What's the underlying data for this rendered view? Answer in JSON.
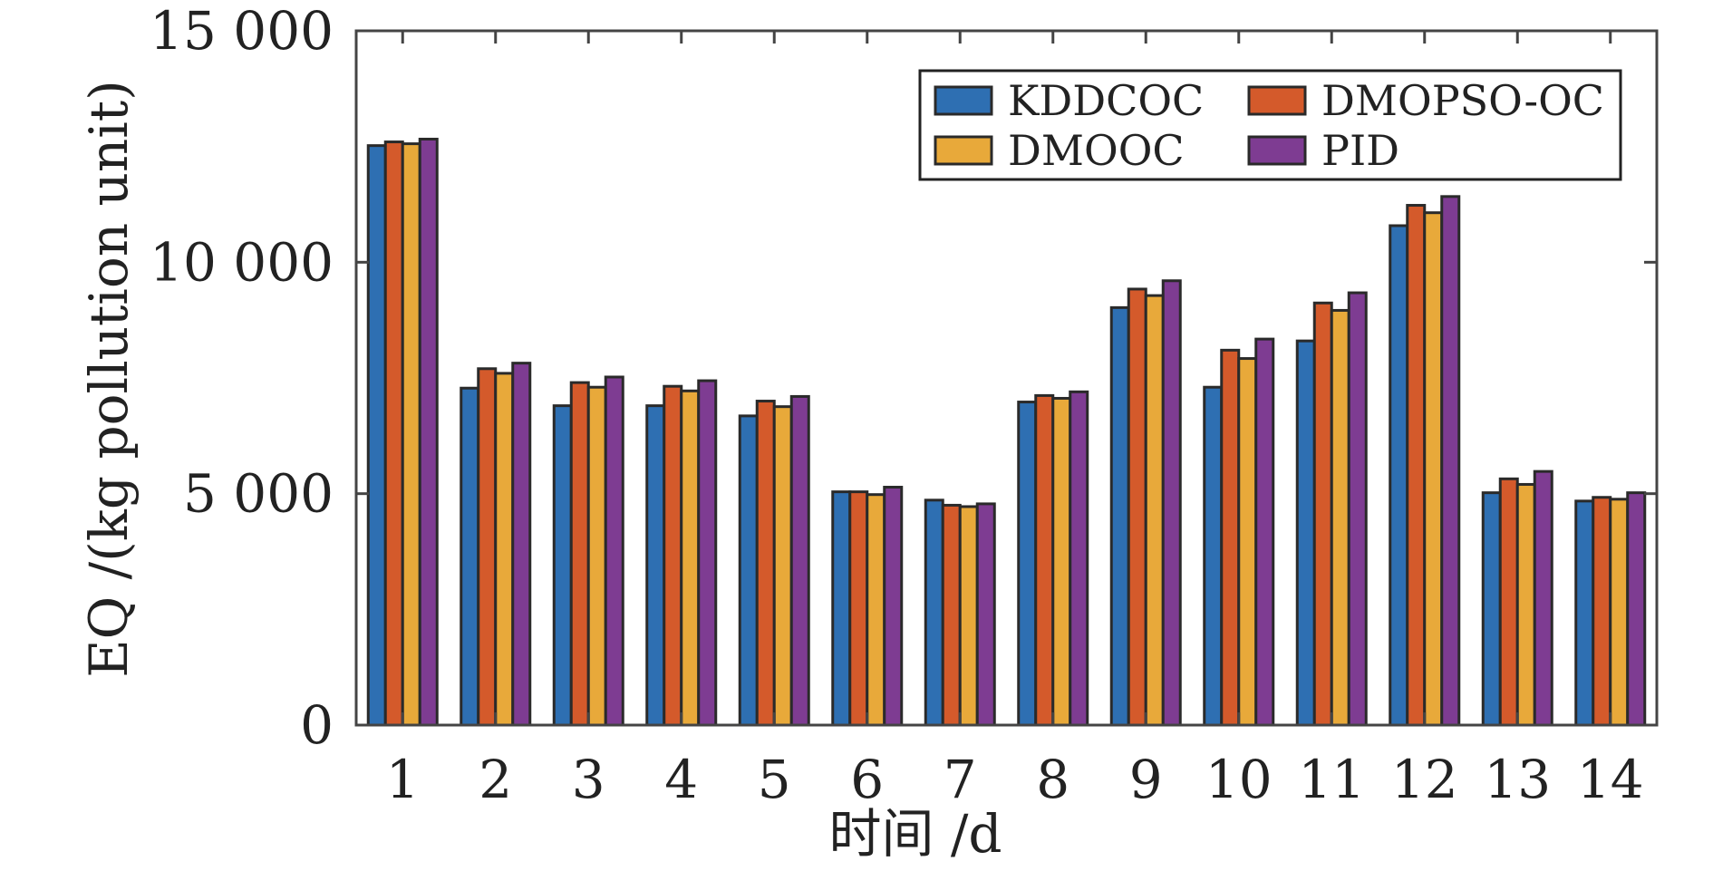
{
  "chart_data": {
    "type": "bar",
    "categories": [
      "1",
      "2",
      "3",
      "4",
      "5",
      "6",
      "7",
      "8",
      "9",
      "10",
      "11",
      "12",
      "13",
      "14"
    ],
    "series": [
      {
        "name": "KDDCOC",
        "color": "#2E6FB2",
        "values": [
          12520,
          7280,
          6900,
          6900,
          6680,
          5040,
          4860,
          6980,
          9020,
          7300,
          8300,
          10790,
          5020,
          4840
        ]
      },
      {
        "name": "DMOPSO-OC",
        "color": "#D45A2B",
        "values": [
          12600,
          7700,
          7400,
          7320,
          7000,
          5040,
          4750,
          7120,
          9420,
          8100,
          9120,
          11230,
          5320,
          4920
        ]
      },
      {
        "name": "DMOOC",
        "color": "#E8A93A",
        "values": [
          12560,
          7600,
          7300,
          7220,
          6880,
          4980,
          4720,
          7060,
          9280,
          7920,
          8960,
          11070,
          5200,
          4880
        ]
      },
      {
        "name": "PID",
        "color": "#7E3C92",
        "values": [
          12660,
          7820,
          7520,
          7440,
          7100,
          5140,
          4780,
          7200,
          9600,
          8340,
          9340,
          11420,
          5480,
          5020
        ]
      }
    ],
    "y_ticks": [
      "0",
      "5 000",
      "10 000",
      "15 000"
    ],
    "y_tick_values": [
      0,
      5000,
      10000,
      15000
    ],
    "ylim": [
      0,
      15000
    ],
    "xlabel": "时间 /d",
    "ylabel": "EQ /(kg pollution unit)",
    "legend_placement": "top-right",
    "grid": false
  }
}
